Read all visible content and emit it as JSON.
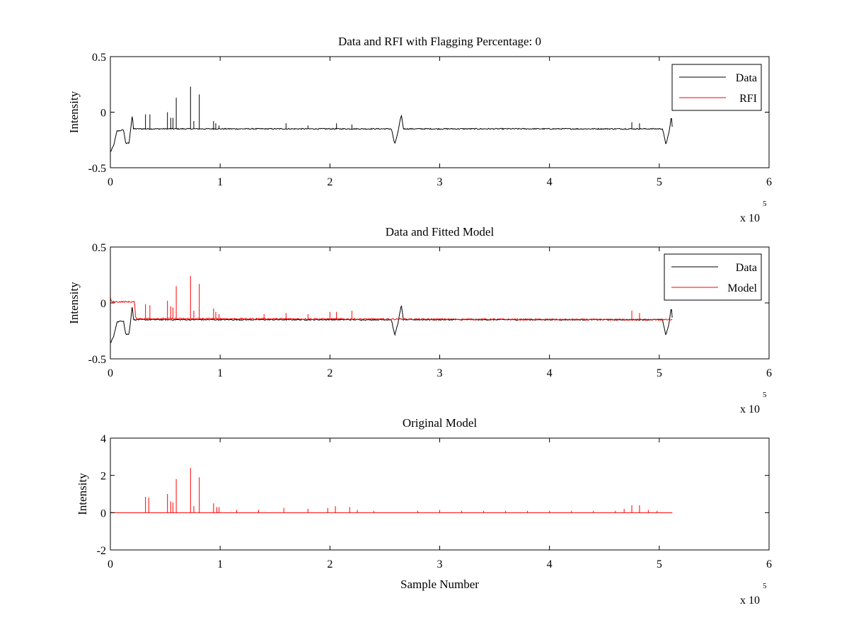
{
  "figure": {
    "background": "#ffffff"
  },
  "colors": {
    "data": "#000000",
    "rfi": "#ff0000",
    "model": "#ff0000"
  },
  "chart_data": [
    {
      "type": "line",
      "title": "Data and RFI with Flagging Percentage: 0",
      "xlabel": "",
      "ylabel": "Intensity",
      "xlim": [
        0,
        600000
      ],
      "ylim": [
        -0.5,
        0.5
      ],
      "xticks": [
        0,
        100000,
        200000,
        300000,
        400000,
        500000,
        600000
      ],
      "xtick_labels": [
        "0",
        "1",
        "2",
        "3",
        "4",
        "5",
        "6"
      ],
      "yticks": [
        -0.5,
        0,
        0.5
      ],
      "ytick_labels": [
        "-0.5",
        "0",
        "0.5"
      ],
      "x_multiplier": {
        "base": "x 10",
        "exponent": "5"
      },
      "grid": false,
      "legend": {
        "position": "top-right",
        "entries": [
          "Data",
          "RFI"
        ]
      },
      "series": [
        {
          "name": "Data",
          "color": "#000000",
          "baseline": [
            [
              0,
              -0.36
            ],
            [
              3000,
              -0.3
            ],
            [
              6000,
              -0.17
            ],
            [
              12000,
              -0.16
            ],
            [
              14000,
              -0.28
            ],
            [
              17000,
              -0.28
            ],
            [
              20000,
              -0.02
            ],
            [
              21000,
              -0.15
            ],
            [
              256000,
              -0.15
            ],
            [
              259000,
              -0.29
            ],
            [
              262000,
              -0.18
            ],
            [
              265000,
              -0.02
            ],
            [
              267000,
              -0.15
            ],
            [
              503000,
              -0.15
            ],
            [
              506000,
              -0.29
            ],
            [
              509000,
              -0.18
            ],
            [
              511000,
              -0.03
            ],
            [
              512000,
              -0.16
            ]
          ],
          "noise": 0.005,
          "spikes": [
            [
              32000,
              -0.02
            ],
            [
              36000,
              -0.02
            ],
            [
              52000,
              0.0
            ],
            [
              55000,
              -0.05
            ],
            [
              57000,
              -0.05
            ],
            [
              60000,
              0.13
            ],
            [
              73000,
              0.23
            ],
            [
              76000,
              -0.08
            ],
            [
              81000,
              0.16
            ],
            [
              94000,
              -0.08
            ],
            [
              96000,
              -0.1
            ],
            [
              99000,
              -0.12
            ],
            [
              160000,
              -0.1
            ],
            [
              180000,
              -0.12
            ],
            [
              206000,
              -0.1
            ],
            [
              220000,
              -0.11
            ],
            [
              475000,
              -0.09
            ],
            [
              482000,
              -0.1
            ]
          ]
        },
        {
          "name": "RFI",
          "color": "#ff0000",
          "points": []
        }
      ]
    },
    {
      "type": "line",
      "title": "Data and Fitted Model",
      "xlabel": "",
      "ylabel": "Intensity",
      "xlim": [
        0,
        600000
      ],
      "ylim": [
        -0.5,
        0.5
      ],
      "xticks": [
        0,
        100000,
        200000,
        300000,
        400000,
        500000,
        600000
      ],
      "xtick_labels": [
        "0",
        "1",
        "2",
        "3",
        "4",
        "5",
        "6"
      ],
      "yticks": [
        -0.5,
        0,
        0.5
      ],
      "ytick_labels": [
        "-0.5",
        "0",
        "0.5"
      ],
      "x_multiplier": {
        "base": "x 10",
        "exponent": "5"
      },
      "grid": false,
      "legend": {
        "position": "top-right",
        "entries": [
          "Data",
          "Model"
        ]
      },
      "series": [
        {
          "name": "Data",
          "color": "#000000",
          "baseline": [
            [
              0,
              -0.36
            ],
            [
              3000,
              -0.3
            ],
            [
              6000,
              -0.17
            ],
            [
              12000,
              -0.16
            ],
            [
              14000,
              -0.28
            ],
            [
              17000,
              -0.28
            ],
            [
              20000,
              -0.02
            ],
            [
              21000,
              -0.15
            ],
            [
              256000,
              -0.15
            ],
            [
              259000,
              -0.29
            ],
            [
              262000,
              -0.18
            ],
            [
              265000,
              -0.02
            ],
            [
              267000,
              -0.15
            ],
            [
              503000,
              -0.15
            ],
            [
              506000,
              -0.29
            ],
            [
              509000,
              -0.18
            ],
            [
              511000,
              -0.03
            ],
            [
              512000,
              -0.16
            ]
          ],
          "noise": 0.005,
          "spikes": []
        },
        {
          "name": "Model",
          "color": "#ff0000",
          "baseline": [
            [
              0,
              0.05
            ],
            [
              1000,
              0.01
            ],
            [
              22000,
              0.01
            ],
            [
              23000,
              -0.14
            ],
            [
              500000,
              -0.15
            ],
            [
              512000,
              -0.15
            ]
          ],
          "noise": 0.006,
          "spikes": [
            [
              32000,
              -0.01
            ],
            [
              36000,
              -0.02
            ],
            [
              52000,
              0.02
            ],
            [
              55000,
              -0.03
            ],
            [
              57000,
              -0.04
            ],
            [
              60000,
              0.15
            ],
            [
              73000,
              0.24
            ],
            [
              76000,
              -0.07
            ],
            [
              81000,
              0.17
            ],
            [
              94000,
              -0.05
            ],
            [
              96000,
              -0.08
            ],
            [
              99000,
              -0.1
            ],
            [
              140000,
              -0.1
            ],
            [
              160000,
              -0.09
            ],
            [
              180000,
              -0.1
            ],
            [
              200000,
              -0.08
            ],
            [
              206000,
              -0.08
            ],
            [
              220000,
              -0.07
            ],
            [
              475000,
              -0.07
            ],
            [
              482000,
              -0.09
            ]
          ]
        }
      ]
    },
    {
      "type": "line",
      "title": "Original Model",
      "xlabel": "Sample Number",
      "ylabel": "Intensity",
      "xlim": [
        0,
        600000
      ],
      "ylim": [
        -2,
        4
      ],
      "xticks": [
        0,
        100000,
        200000,
        300000,
        400000,
        500000,
        600000
      ],
      "xtick_labels": [
        "0",
        "1",
        "2",
        "3",
        "4",
        "5",
        "6"
      ],
      "yticks": [
        -2,
        0,
        2,
        4
      ],
      "ytick_labels": [
        "-2",
        "0",
        "2",
        "4"
      ],
      "x_multiplier": {
        "base": "x 10",
        "exponent": "5"
      },
      "grid": false,
      "legend": null,
      "series": [
        {
          "color": "#ff0000",
          "baseline": [
            [
              0,
              0
            ],
            [
              512000,
              0
            ]
          ],
          "noise": 0,
          "spikes": [
            [
              32000,
              0.85
            ],
            [
              35000,
              0.8
            ],
            [
              52000,
              1.0
            ],
            [
              55000,
              0.6
            ],
            [
              57000,
              0.55
            ],
            [
              60000,
              1.8
            ],
            [
              73000,
              2.4
            ],
            [
              76000,
              0.35
            ],
            [
              81000,
              1.9
            ],
            [
              94000,
              0.5
            ],
            [
              97000,
              0.3
            ],
            [
              99000,
              0.3
            ],
            [
              115000,
              0.15
            ],
            [
              135000,
              0.15
            ],
            [
              158000,
              0.25
            ],
            [
              180000,
              0.2
            ],
            [
              198000,
              0.25
            ],
            [
              205000,
              0.35
            ],
            [
              218000,
              0.3
            ],
            [
              225000,
              0.15
            ],
            [
              240000,
              0.1
            ],
            [
              280000,
              0.1
            ],
            [
              300000,
              0.15
            ],
            [
              320000,
              0.1
            ],
            [
              340000,
              0.1
            ],
            [
              360000,
              0.1
            ],
            [
              380000,
              0.1
            ],
            [
              400000,
              0.1
            ],
            [
              420000,
              0.1
            ],
            [
              440000,
              0.1
            ],
            [
              460000,
              0.1
            ],
            [
              468000,
              0.2
            ],
            [
              475000,
              0.4
            ],
            [
              482000,
              0.4
            ],
            [
              490000,
              0.15
            ],
            [
              498000,
              0.1
            ]
          ]
        }
      ]
    }
  ]
}
